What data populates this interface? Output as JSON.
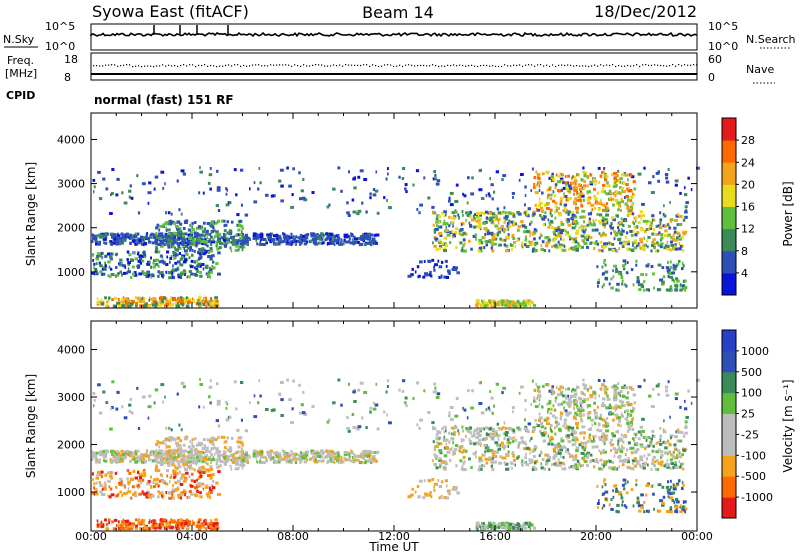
{
  "header": {
    "station": "Syowa East (fitACF)",
    "beam": "Beam 14",
    "date": "18/Dec/2012"
  },
  "panels": {
    "nsky": {
      "left_label": "N.Sky",
      "right_label": "N.Search",
      "left_ticks": [
        "10^5",
        "10^0"
      ],
      "right_ticks": [
        "10^5",
        "10^0"
      ]
    },
    "freq": {
      "left_label_line1": "Freq.",
      "left_label_line2": "[MHz]",
      "left_ticks": [
        "18",
        "8"
      ],
      "right_label": "Nave",
      "right_ticks": [
        "60",
        "0"
      ]
    },
    "cpid": {
      "label": "CPID",
      "text": "normal (fast) 151 RF"
    }
  },
  "colors": {
    "power_scale": [
      "#0a14d6",
      "#2e4fb8",
      "#3b8a5a",
      "#5fbf3c",
      "#e8dc1e",
      "#f5a21c",
      "#ff6a00",
      "#e51a1a"
    ],
    "velocity_scale": [
      "#e51a1a",
      "#ff6a00",
      "#f5a21c",
      "#bdbdbd",
      "#bdbdbd",
      "#5fbf3c",
      "#3b8a5a",
      "#2e4fb8",
      "#2a3fc8"
    ]
  },
  "chart_data": [
    {
      "type": "heatmap",
      "name": "power",
      "ylabel": "Slant Range [km]",
      "y_ticks": [
        1000,
        2000,
        3000,
        4000
      ],
      "ylim": [
        180,
        4600
      ],
      "x_ticks": [
        "00:00",
        "04:00",
        "08:00",
        "12:00",
        "16:00",
        "20:00",
        "00:00"
      ],
      "colorbar_label": "Power [dB]",
      "colorbar_ticks": [
        4,
        8,
        12,
        16,
        20,
        24,
        28
      ]
    },
    {
      "type": "heatmap",
      "name": "velocity",
      "ylabel": "Slant Range [km]",
      "y_ticks": [
        1000,
        2000,
        3000,
        4000
      ],
      "ylim": [
        180,
        4600
      ],
      "x_ticks": [
        "00:00",
        "04:00",
        "08:00",
        "12:00",
        "16:00",
        "20:00",
        "00:00"
      ],
      "xlabel": "Time UT",
      "colorbar_label": "Velocity [m s⁻¹]",
      "colorbar_ticks": [
        1000,
        500,
        100,
        25,
        -25,
        -100,
        -500,
        -1000
      ]
    }
  ]
}
